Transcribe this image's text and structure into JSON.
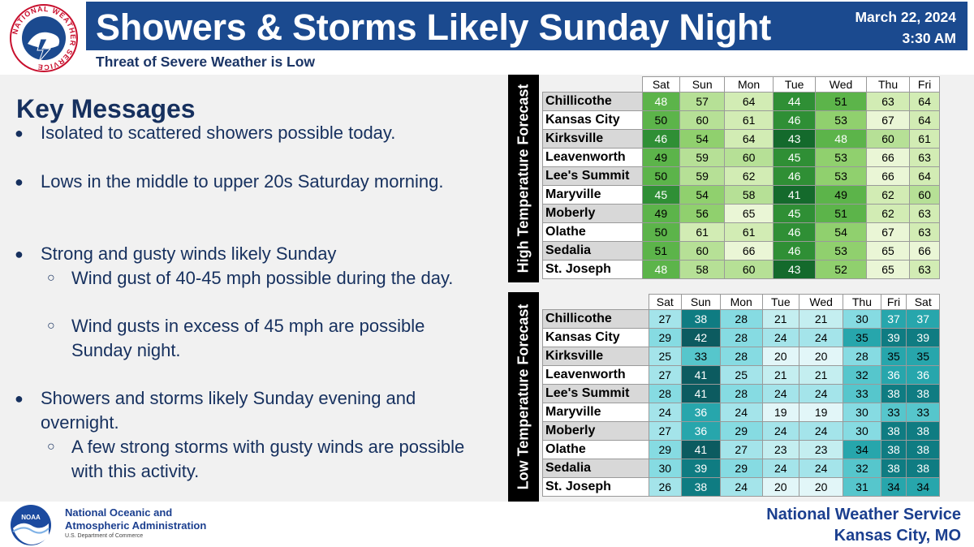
{
  "header": {
    "title": "Showers & Storms Likely Sunday Night",
    "date": "March 22, 2024",
    "time": "3:30 AM",
    "subtitle": "Threat of Severe Weather is Low",
    "logo_text": "NATIONAL WEATHER SERVICE"
  },
  "key_messages": {
    "title": "Key Messages",
    "bullet1": "Isolated to scattered showers possible today.",
    "bullet2": "Lows in the middle to upper 20s Saturday morning.",
    "bullet3": "Strong and gusty winds likely Sunday",
    "bullet3_sub1": "Wind gust of 40-45 mph possible during the day.",
    "bullet3_sub2": "Wind gusts in excess of 45 mph are possible Sunday night.",
    "bullet4": "Showers and storms likely Sunday evening and overnight.",
    "bullet4_sub1": "A few strong storms with gusty winds are possible with this activity.",
    "bullet_marker": "●",
    "sub_marker": "○"
  },
  "high_table": {
    "label": "High Temperature Forecast",
    "days": [
      "Sat",
      "Sun",
      "Mon",
      "Tue",
      "Wed",
      "Thu",
      "Fri"
    ],
    "rows": [
      {
        "city": "Chillicothe",
        "values": [
          48,
          57,
          64,
          44,
          51,
          63,
          64
        ]
      },
      {
        "city": "Kansas City",
        "values": [
          50,
          60,
          61,
          46,
          53,
          67,
          64
        ]
      },
      {
        "city": "Kirksville",
        "values": [
          46,
          54,
          64,
          43,
          48,
          60,
          61
        ]
      },
      {
        "city": "Leavenworth",
        "values": [
          49,
          59,
          60,
          45,
          53,
          66,
          63
        ]
      },
      {
        "city": "Lee's Summit",
        "values": [
          50,
          59,
          62,
          46,
          53,
          66,
          64
        ]
      },
      {
        "city": "Maryville",
        "values": [
          45,
          54,
          58,
          41,
          49,
          62,
          60
        ]
      },
      {
        "city": "Moberly",
        "values": [
          49,
          56,
          65,
          45,
          51,
          62,
          63
        ]
      },
      {
        "city": "Olathe",
        "values": [
          50,
          61,
          61,
          46,
          54,
          67,
          63
        ]
      },
      {
        "city": "Sedalia",
        "values": [
          51,
          60,
          66,
          46,
          53,
          65,
          66
        ]
      },
      {
        "city": "St. Joseph",
        "values": [
          48,
          58,
          60,
          43,
          52,
          65,
          63
        ]
      }
    ]
  },
  "low_table": {
    "label": "Low Temperature Forecast",
    "days": [
      "Sat",
      "Sun",
      "Mon",
      "Tue",
      "Wed",
      "Thu",
      "Fri",
      "Sat"
    ],
    "rows": [
      {
        "city": "Chillicothe",
        "values": [
          27,
          38,
          28,
          21,
          21,
          30,
          37,
          37
        ]
      },
      {
        "city": "Kansas City",
        "values": [
          29,
          42,
          28,
          24,
          24,
          35,
          39,
          39
        ]
      },
      {
        "city": "Kirksville",
        "values": [
          25,
          33,
          28,
          20,
          20,
          28,
          35,
          35
        ]
      },
      {
        "city": "Leavenworth",
        "values": [
          27,
          41,
          25,
          21,
          21,
          32,
          36,
          36
        ]
      },
      {
        "city": "Lee's Summit",
        "values": [
          28,
          41,
          28,
          24,
          24,
          33,
          38,
          38
        ]
      },
      {
        "city": "Maryville",
        "values": [
          24,
          36,
          24,
          19,
          19,
          30,
          33,
          33
        ]
      },
      {
        "city": "Moberly",
        "values": [
          27,
          36,
          29,
          24,
          24,
          30,
          38,
          38
        ]
      },
      {
        "city": "Olathe",
        "values": [
          29,
          41,
          27,
          23,
          23,
          34,
          38,
          38
        ]
      },
      {
        "city": "Sedalia",
        "values": [
          30,
          39,
          29,
          24,
          24,
          32,
          38,
          38
        ]
      },
      {
        "city": "St. Joseph",
        "values": [
          26,
          38,
          24,
          20,
          20,
          31,
          34,
          34
        ]
      }
    ]
  },
  "footer": {
    "noaa_logo_text": "NOAA",
    "noaa_line1": "National Oceanic and",
    "noaa_line2": "Atmospheric Administration",
    "noaa_line3": "U.S. Department of Commerce",
    "office_line1": "National Weather Service",
    "office_line2": "Kansas City, MO"
  },
  "colors": {
    "title_bar": "#1b4a8f",
    "text_navy": "#16305e",
    "high_scale": [
      "#eaf6d6",
      "#d2ecb4",
      "#b6e096",
      "#90d06e",
      "#5cb44a",
      "#2f8f35",
      "#146a2c"
    ],
    "low_scale": [
      "#e2f6f8",
      "#c4eef0",
      "#a4e4ea",
      "#86dbe2",
      "#56c6cc",
      "#27a6ac",
      "#0f7c82",
      "#0c5b60"
    ]
  }
}
